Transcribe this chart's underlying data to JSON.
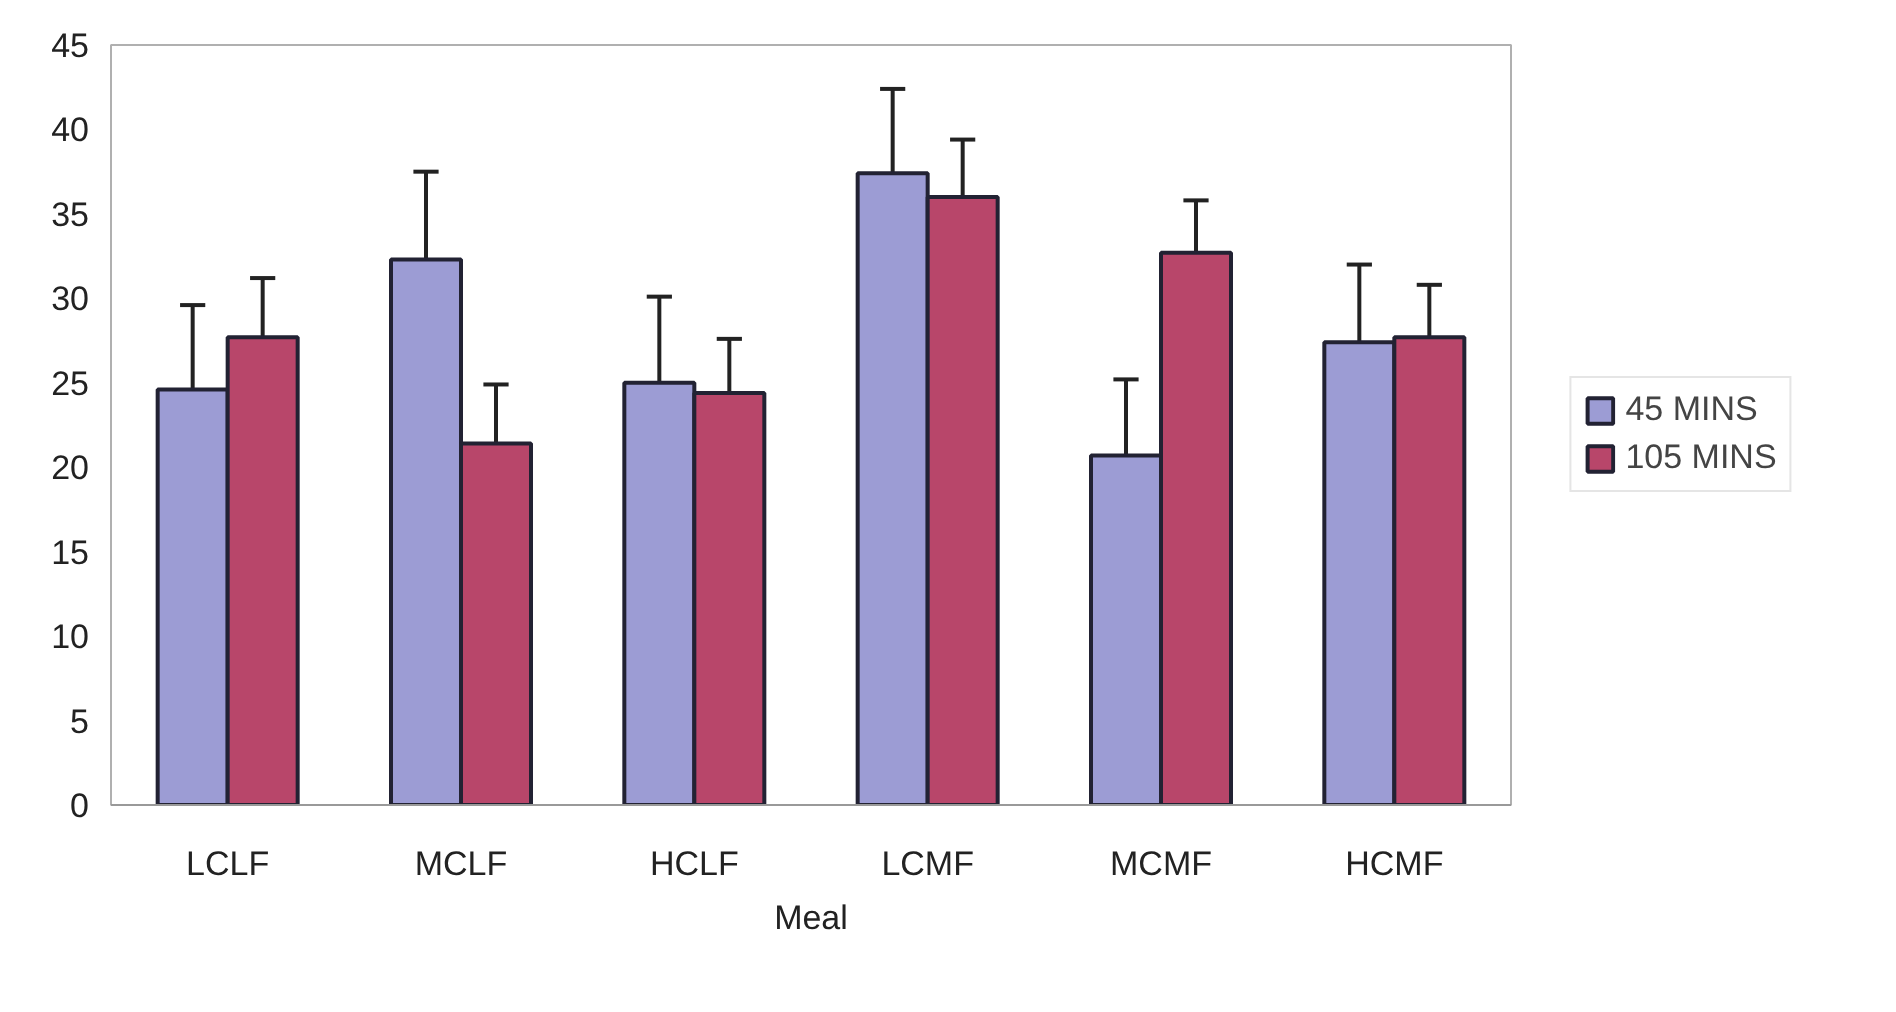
{
  "chart_data": {
    "type": "bar",
    "xlabel": "Meal",
    "categories": [
      "LCLF",
      "MCLF",
      "HCLF",
      "LCMF",
      "MCMF",
      "HCMF"
    ],
    "series": [
      {
        "name": "45 MINS",
        "color": "#9c9cd4",
        "values": [
          24.6,
          32.3,
          25.0,
          37.4,
          20.7,
          27.4
        ],
        "errors": [
          5.0,
          5.2,
          5.1,
          5.0,
          4.5,
          4.6
        ]
      },
      {
        "name": "105 MINS",
        "color": "#b8466a",
        "values": [
          27.7,
          21.4,
          24.4,
          36.0,
          32.7,
          27.7
        ],
        "errors": [
          3.5,
          3.5,
          3.2,
          3.4,
          3.1,
          3.1
        ]
      }
    ],
    "ylim": [
      0,
      45
    ],
    "yticks": [
      0,
      5,
      10,
      15,
      20,
      25,
      30,
      35,
      40,
      45
    ],
    "grid": false,
    "legend": "right"
  }
}
